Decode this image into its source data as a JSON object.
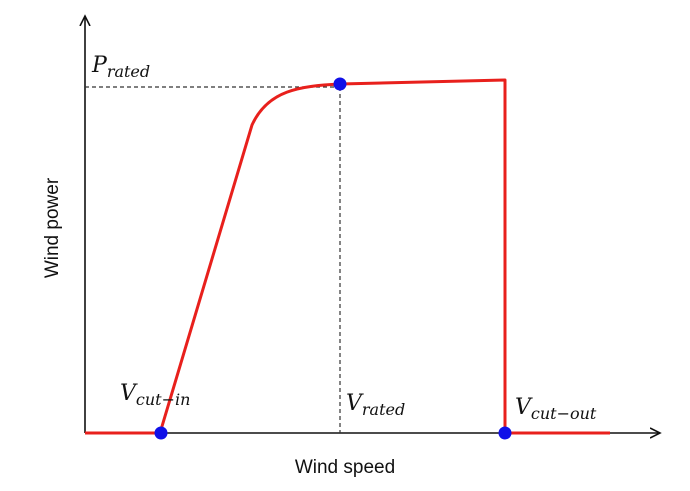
{
  "diagram": {
    "x_axis_label": "Wind speed",
    "y_axis_label": "Wind power",
    "annotations": {
      "p_rated": {
        "main": "P",
        "sub": "rated"
      },
      "v_cut_in": {
        "main": "V",
        "sub": "cut−in"
      },
      "v_rated": {
        "main": "V",
        "sub": "rated"
      },
      "v_cut_out": {
        "main": "V",
        "sub": "cut−out"
      }
    }
  }
}
